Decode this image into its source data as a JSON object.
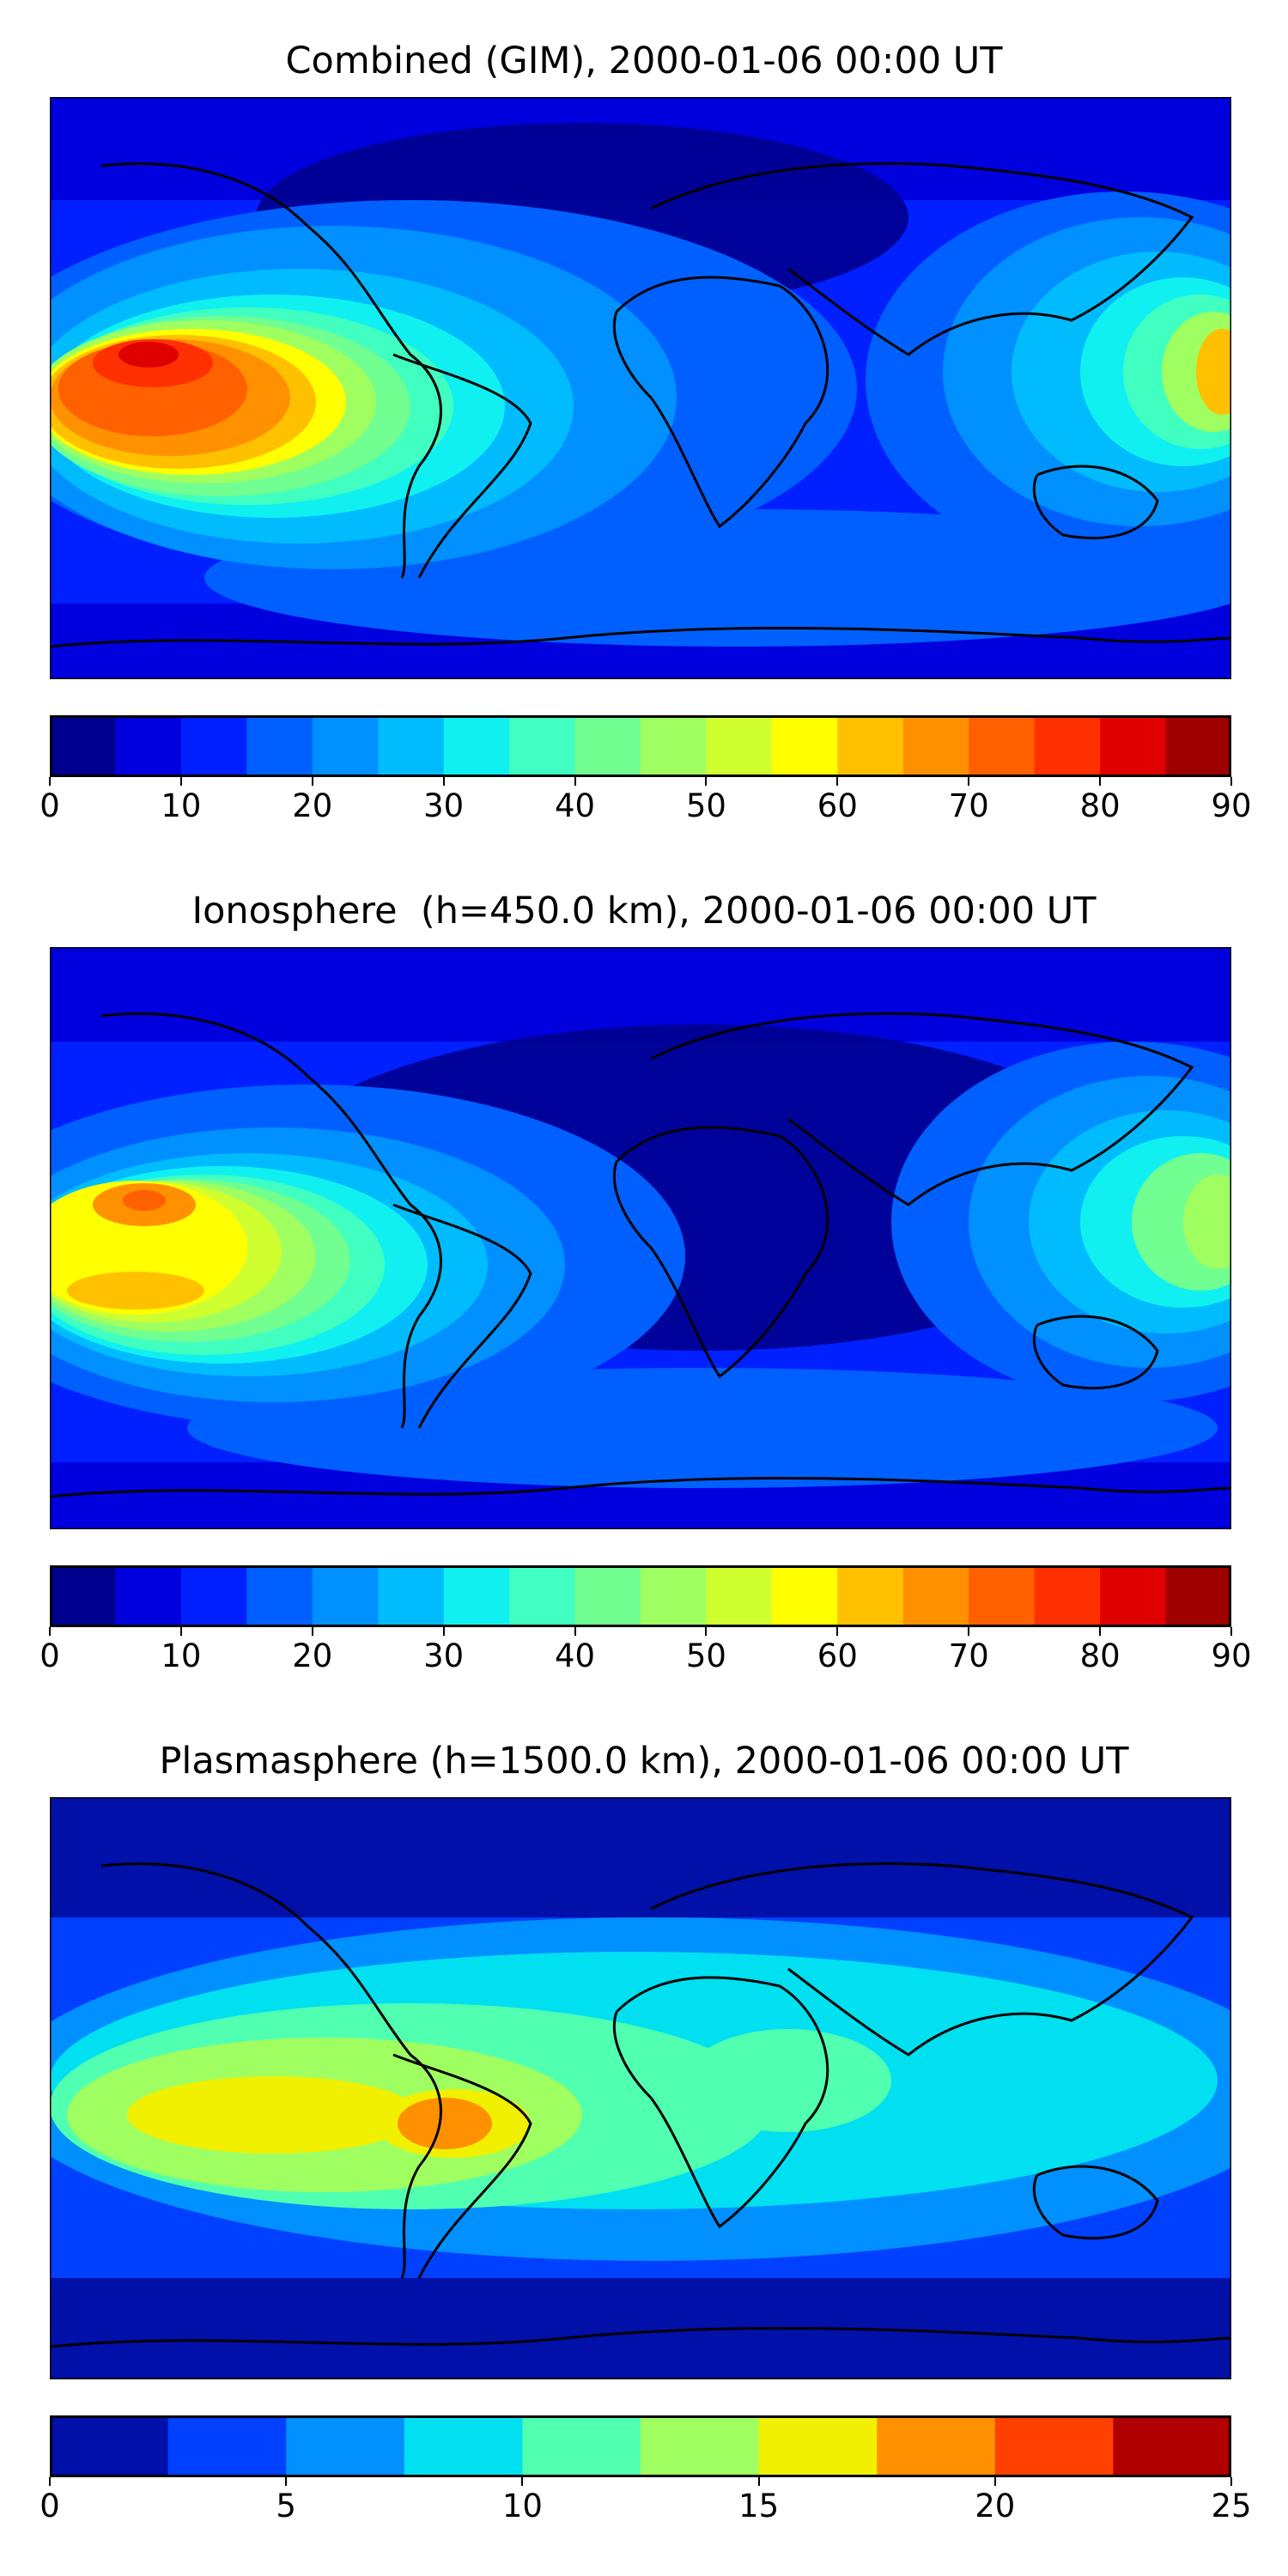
{
  "panels": [
    {
      "title": "Combined (GIM), 2000-01-06 00:00 UT",
      "colorbar": {
        "ticks": [
          "0",
          "10",
          "20",
          "30",
          "40",
          "50",
          "60",
          "70",
          "80",
          "90"
        ],
        "levels": [
          0,
          5,
          10,
          15,
          20,
          25,
          30,
          35,
          40,
          45,
          50,
          55,
          60,
          65,
          70,
          75,
          80,
          85,
          90
        ],
        "colors": [
          "#00008f",
          "#0000df",
          "#0020ff",
          "#0060ff",
          "#0090ff",
          "#00bcff",
          "#10f0f0",
          "#40ffc0",
          "#70ff90",
          "#a0ff60",
          "#d0ff30",
          "#ffff00",
          "#ffc000",
          "#ff9000",
          "#ff6000",
          "#ff3000",
          "#df0000",
          "#9f0000"
        ]
      }
    },
    {
      "title": "Ionosphere  (h=450.0 km), 2000-01-06 00:00 UT",
      "colorbar": {
        "ticks": [
          "0",
          "10",
          "20",
          "30",
          "40",
          "50",
          "60",
          "70",
          "80",
          "90"
        ],
        "levels": [
          0,
          5,
          10,
          15,
          20,
          25,
          30,
          35,
          40,
          45,
          50,
          55,
          60,
          65,
          70,
          75,
          80,
          85,
          90
        ],
        "colors": [
          "#00008f",
          "#0000df",
          "#0020ff",
          "#0060ff",
          "#0090ff",
          "#00bcff",
          "#10f0f0",
          "#40ffc0",
          "#70ff90",
          "#a0ff60",
          "#d0ff30",
          "#ffff00",
          "#ffc000",
          "#ff9000",
          "#ff6000",
          "#ff3000",
          "#df0000",
          "#9f0000"
        ]
      }
    },
    {
      "title": "Plasmasphere (h=1500.0 km), 2000-01-06 00:00 UT",
      "colorbar": {
        "ticks": [
          "0",
          "5",
          "10",
          "15",
          "20",
          "25"
        ],
        "levels": [
          0,
          2.5,
          5,
          7.5,
          10,
          12.5,
          15,
          17.5,
          20,
          22.5,
          25
        ],
        "colors": [
          "#0010a8",
          "#0040ff",
          "#0090ff",
          "#00e0f0",
          "#50ffb0",
          "#a0ff60",
          "#f0f000",
          "#ff9000",
          "#ff4000",
          "#b00000"
        ]
      }
    }
  ]
}
